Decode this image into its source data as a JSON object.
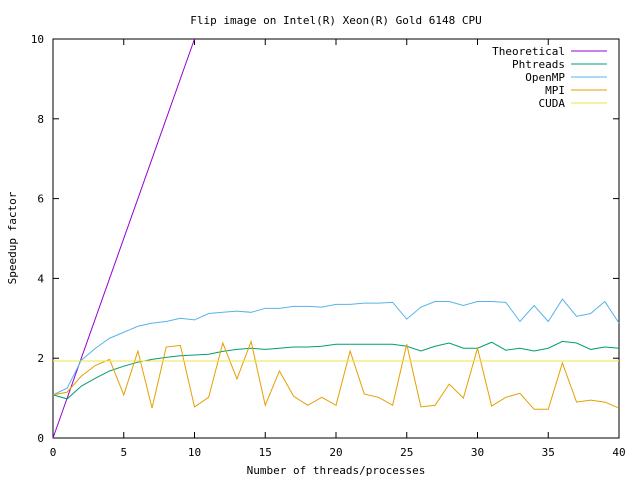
{
  "chart_data": {
    "type": "line",
    "title": "Flip image on Intel(R) Xeon(R) Gold 6148 CPU",
    "xlabel": "Number of threads/processes",
    "ylabel": "Speedup factor",
    "xlim": [
      0,
      40
    ],
    "ylim": [
      0,
      10
    ],
    "xticks": [
      "0",
      "5",
      "10",
      "15",
      "20",
      "25",
      "30",
      "35",
      "40"
    ],
    "yticks": [
      "0",
      "2",
      "4",
      "6",
      "8",
      "10"
    ],
    "grid": false,
    "legend_position": "top-right",
    "x": [
      0,
      1,
      2,
      3,
      4,
      5,
      6,
      7,
      8,
      9,
      10,
      11,
      12,
      13,
      14,
      15,
      16,
      17,
      18,
      19,
      20,
      21,
      22,
      23,
      24,
      25,
      26,
      27,
      28,
      29,
      30,
      31,
      32,
      33,
      34,
      35,
      36,
      37,
      38,
      39,
      40
    ],
    "series": [
      {
        "name": "Theoretical",
        "color": "#9400d3",
        "x": [
          0,
          10
        ],
        "values": [
          0,
          10
        ]
      },
      {
        "name": "Phtreads",
        "color": "#009e73",
        "values": [
          1.08,
          0.98,
          1.3,
          1.5,
          1.68,
          1.8,
          1.9,
          1.97,
          2.02,
          2.06,
          2.08,
          2.1,
          2.17,
          2.22,
          2.25,
          2.22,
          2.25,
          2.28,
          2.28,
          2.3,
          2.35,
          2.35,
          2.35,
          2.35,
          2.35,
          2.3,
          2.18,
          2.3,
          2.38,
          2.25,
          2.25,
          2.4,
          2.2,
          2.25,
          2.18,
          2.25,
          2.42,
          2.38,
          2.22,
          2.28,
          2.25
        ]
      },
      {
        "name": "OpenMP",
        "color": "#56b4e9",
        "values": [
          1.08,
          1.25,
          1.95,
          2.25,
          2.5,
          2.65,
          2.8,
          2.88,
          2.92,
          3.0,
          2.96,
          3.12,
          3.15,
          3.18,
          3.15,
          3.25,
          3.25,
          3.3,
          3.3,
          3.28,
          3.35,
          3.35,
          3.38,
          3.38,
          3.4,
          2.98,
          3.28,
          3.42,
          3.42,
          3.32,
          3.42,
          3.42,
          3.4,
          2.92,
          3.32,
          2.92,
          3.48,
          3.05,
          3.12,
          3.42,
          2.88
        ]
      },
      {
        "name": "MPI",
        "color": "#e69f00",
        "values": [
          1.08,
          1.15,
          1.55,
          1.82,
          1.97,
          1.08,
          2.18,
          0.75,
          2.28,
          2.32,
          0.78,
          1.02,
          2.38,
          1.48,
          2.42,
          0.82,
          1.68,
          1.05,
          0.82,
          1.02,
          0.82,
          2.18,
          1.1,
          1.02,
          0.82,
          2.35,
          0.78,
          0.82,
          1.35,
          1.0,
          2.25,
          0.8,
          1.02,
          1.12,
          0.72,
          0.72,
          1.88,
          0.9,
          0.95,
          0.9,
          0.75
        ]
      },
      {
        "name": "CUDA",
        "color": "#f0e442",
        "x": [
          0,
          40
        ],
        "values": [
          1.93,
          1.93
        ]
      }
    ]
  }
}
